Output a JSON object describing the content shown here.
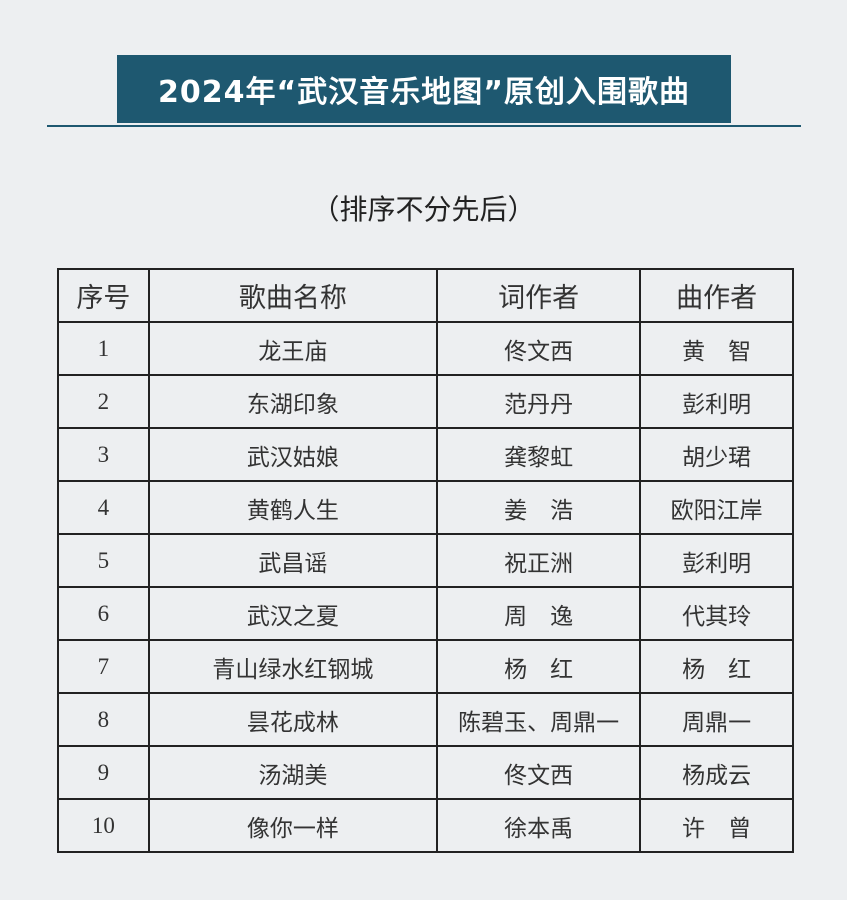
{
  "title": "2024年“武汉音乐地图”原创入围歌曲",
  "subtitle": "（排序不分先后）",
  "table": {
    "headers": [
      "序号",
      "歌曲名称",
      "词作者",
      "曲作者"
    ],
    "rows": [
      [
        "1",
        "龙王庙",
        "佟文西",
        "黄　智"
      ],
      [
        "2",
        "东湖印象",
        "范丹丹",
        "彭利明"
      ],
      [
        "3",
        "武汉姑娘",
        "龚黎虹",
        "胡少珺"
      ],
      [
        "4",
        "黄鹤人生",
        "姜　浩",
        "欧阳江岸"
      ],
      [
        "5",
        "武昌谣",
        "祝正洲",
        "彭利明"
      ],
      [
        "6",
        "武汉之夏",
        "周　逸",
        "代其玲"
      ],
      [
        "7",
        "青山绿水红钢城",
        "杨　红",
        "杨　红"
      ],
      [
        "8",
        "昙花成林",
        "陈碧玉、周鼎一",
        "周鼎一"
      ],
      [
        "9",
        "汤湖美",
        "佟文西",
        "杨成云"
      ],
      [
        "10",
        "像你一样",
        "徐本禹",
        "许　曾"
      ]
    ]
  },
  "colors": {
    "banner": "#1e5870",
    "background": "#edeff1"
  }
}
